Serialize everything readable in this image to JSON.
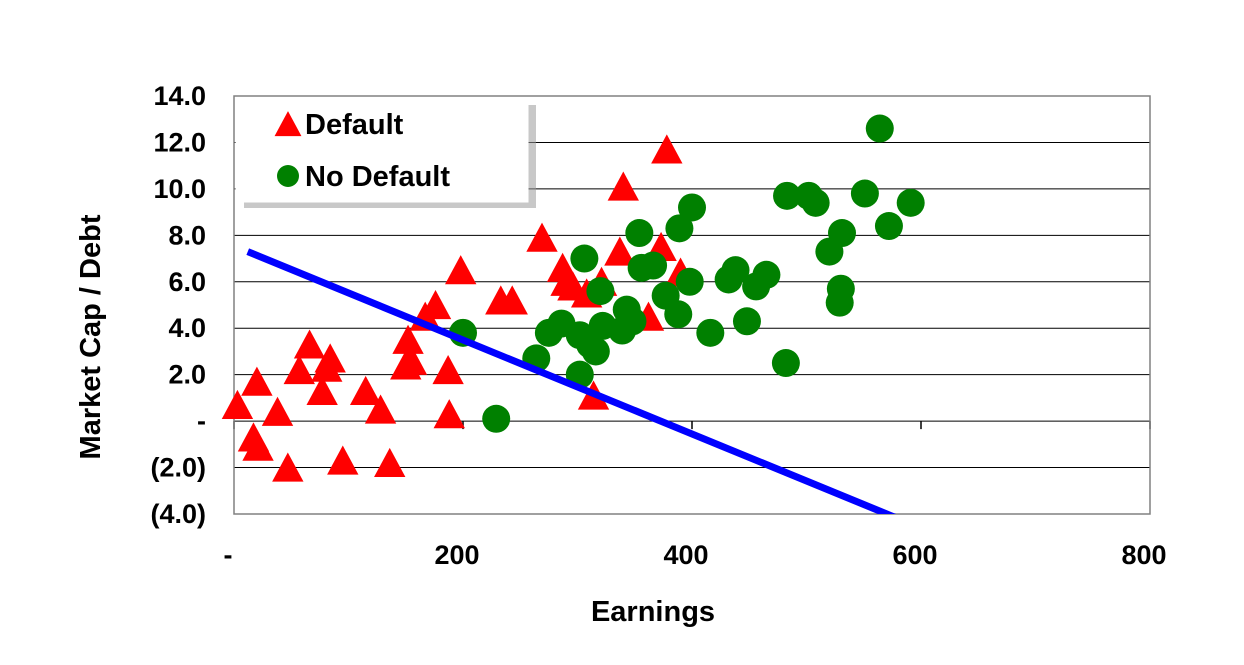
{
  "chart_data": {
    "type": "scatter",
    "title": "",
    "xlabel": "Earnings",
    "ylabel": "Market Cap / Debt",
    "xlim": [
      0,
      800
    ],
    "ylim": [
      -4,
      14
    ],
    "x_ticks": [
      {
        "value": 0,
        "label": "-"
      },
      {
        "value": 200,
        "label": "200"
      },
      {
        "value": 400,
        "label": "400"
      },
      {
        "value": 600,
        "label": "600"
      },
      {
        "value": 800,
        "label": "800"
      }
    ],
    "y_ticks": [
      {
        "value": 14,
        "label": "14.0"
      },
      {
        "value": 12,
        "label": "12.0"
      },
      {
        "value": 10,
        "label": "10.0"
      },
      {
        "value": 8,
        "label": "8.0"
      },
      {
        "value": 6,
        "label": "6.0"
      },
      {
        "value": 4,
        "label": "4.0"
      },
      {
        "value": 2,
        "label": "2.0"
      },
      {
        "value": 0,
        "label": "-"
      },
      {
        "value": -2,
        "label": "(2.0)"
      },
      {
        "value": -4,
        "label": "(4.0)"
      }
    ],
    "grid": true,
    "legend_position": "top-left",
    "series": [
      {
        "name": "Default",
        "marker": "triangle",
        "color": "#ff0000",
        "points": [
          [
            3,
            0.6
          ],
          [
            17,
            -0.8
          ],
          [
            20,
            1.6
          ],
          [
            21,
            -1.2
          ],
          [
            38,
            0.3
          ],
          [
            47,
            -2.1
          ],
          [
            57,
            2.1
          ],
          [
            66,
            3.2
          ],
          [
            77,
            1.2
          ],
          [
            81,
            2.2
          ],
          [
            84,
            2.6
          ],
          [
            95,
            -1.8
          ],
          [
            115,
            1.2
          ],
          [
            128,
            0.4
          ],
          [
            136,
            -1.9
          ],
          [
            150,
            2.3
          ],
          [
            152,
            3.4
          ],
          [
            155,
            2.5
          ],
          [
            167,
            4.4
          ],
          [
            176,
            4.9
          ],
          [
            187,
            2.1
          ],
          [
            188,
            0.2
          ],
          [
            198,
            6.4
          ],
          [
            233,
            5.1
          ],
          [
            243,
            5.1
          ],
          [
            269,
            7.8
          ],
          [
            287,
            6.5
          ],
          [
            290,
            5.9
          ],
          [
            296,
            5.7
          ],
          [
            308,
            5.4
          ],
          [
            314,
            1.0
          ],
          [
            321,
            5.9
          ],
          [
            337,
            7.2
          ],
          [
            340,
            10.0
          ],
          [
            362,
            4.4
          ],
          [
            373,
            7.4
          ],
          [
            378,
            11.6
          ],
          [
            390,
            6.3
          ]
        ]
      },
      {
        "name": "No Default",
        "marker": "circle",
        "color": "#008000",
        "points": [
          [
            200,
            3.8
          ],
          [
            229,
            0.1
          ],
          [
            264,
            2.7
          ],
          [
            275,
            3.8
          ],
          [
            286,
            4.2
          ],
          [
            302,
            3.7
          ],
          [
            302,
            2.0
          ],
          [
            306,
            7.0
          ],
          [
            311,
            3.3
          ],
          [
            316,
            3.0
          ],
          [
            320,
            5.6
          ],
          [
            322,
            4.1
          ],
          [
            339,
            3.9
          ],
          [
            343,
            4.8
          ],
          [
            348,
            4.3
          ],
          [
            354,
            8.1
          ],
          [
            356,
            6.6
          ],
          [
            366,
            6.7
          ],
          [
            377,
            5.4
          ],
          [
            388,
            4.6
          ],
          [
            389,
            8.3
          ],
          [
            398,
            6.0
          ],
          [
            400,
            9.2
          ],
          [
            416,
            3.8
          ],
          [
            432,
            6.1
          ],
          [
            438,
            6.5
          ],
          [
            448,
            4.3
          ],
          [
            456,
            5.8
          ],
          [
            465,
            6.3
          ],
          [
            482,
            2.5
          ],
          [
            483,
            9.7
          ],
          [
            502,
            9.7
          ],
          [
            508,
            9.4
          ],
          [
            520,
            7.3
          ],
          [
            529,
            5.1
          ],
          [
            530,
            5.7
          ],
          [
            531,
            8.1
          ],
          [
            551,
            9.8
          ],
          [
            564,
            12.6
          ],
          [
            572,
            8.4
          ],
          [
            591,
            9.4
          ]
        ]
      }
    ],
    "trend_line": {
      "color": "#0000ff",
      "from": [
        12,
        7.3
      ],
      "to": [
        590,
        -4.4
      ]
    }
  }
}
